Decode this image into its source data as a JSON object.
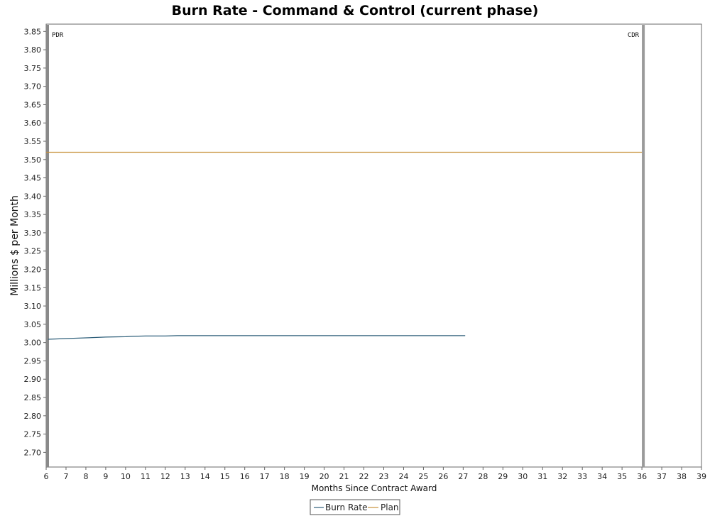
{
  "chart_data": {
    "type": "line",
    "title": "Burn Rate - Command & Control (current phase)",
    "xlabel": "Months Since Contract Award",
    "ylabel": "Millions $ per Month",
    "xlim": [
      6,
      39
    ],
    "ylim": [
      2.66,
      3.87
    ],
    "x_ticks": [
      6,
      7,
      8,
      9,
      10,
      11,
      12,
      13,
      14,
      15,
      16,
      17,
      18,
      19,
      20,
      21,
      22,
      23,
      24,
      25,
      26,
      27,
      28,
      29,
      30,
      31,
      32,
      33,
      34,
      35,
      36,
      37,
      38,
      39
    ],
    "y_ticks": [
      2.7,
      2.75,
      2.8,
      2.85,
      2.9,
      2.95,
      3.0,
      3.05,
      3.1,
      3.15,
      3.2,
      3.25,
      3.3,
      3.35,
      3.4,
      3.45,
      3.5,
      3.55,
      3.6,
      3.65,
      3.7,
      3.75,
      3.8,
      3.85
    ],
    "grid": false,
    "legend_position": "bottom-center",
    "series": [
      {
        "name": "Burn Rate",
        "color": "#2e5f7a",
        "points": [
          [
            6.1,
            3.009
          ],
          [
            7,
            3.011
          ],
          [
            8,
            3.013
          ],
          [
            9,
            3.015
          ],
          [
            10,
            3.016
          ],
          [
            10.3,
            3.017
          ],
          [
            11,
            3.018
          ],
          [
            12,
            3.018
          ],
          [
            12.6,
            3.019
          ],
          [
            13,
            3.019
          ],
          [
            15,
            3.019
          ],
          [
            18,
            3.019
          ],
          [
            21,
            3.019
          ],
          [
            24,
            3.019
          ],
          [
            27.1,
            3.019
          ]
        ]
      },
      {
        "name": "Plan",
        "color": "#c8913a",
        "points": [
          [
            6,
            3.52
          ],
          [
            36,
            3.52
          ]
        ]
      }
    ],
    "markers": [
      {
        "label": "PDR",
        "x": 6,
        "color": "#8a8a8a"
      },
      {
        "label": "CDR",
        "x": 36,
        "color": "#9a9a9a"
      }
    ]
  }
}
